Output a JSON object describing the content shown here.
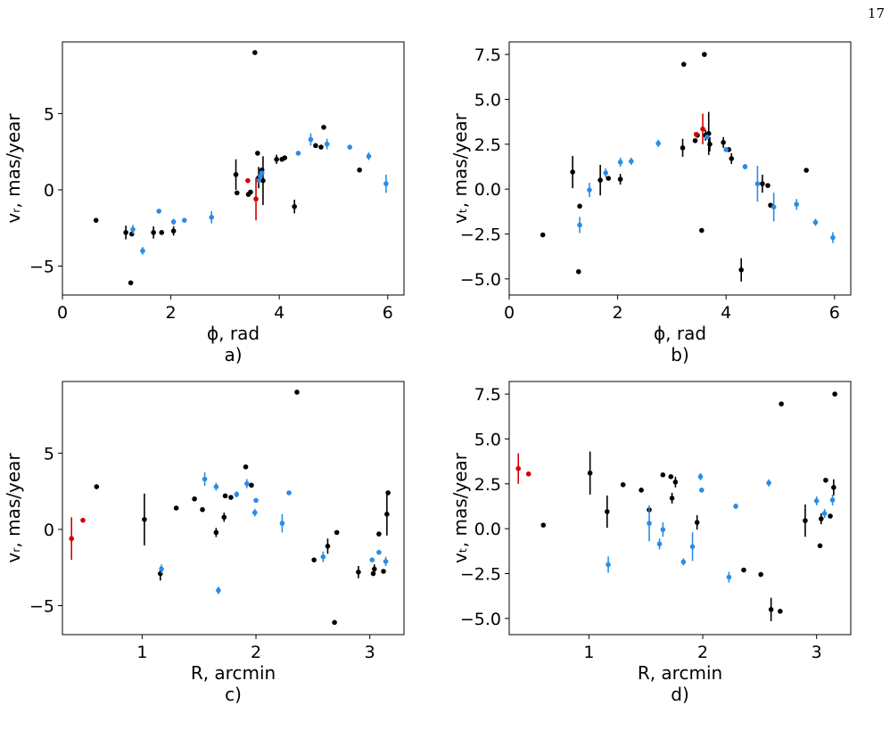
{
  "page_number": "17",
  "colors": {
    "black": "#000000",
    "blue": "#2b8ce6",
    "red": "#d40000"
  },
  "chart_data": [
    {
      "type": "scatter",
      "panel": "a",
      "caption": "a)",
      "xlabel": "ϕ, rad",
      "ylabel": "vᵣ, mas/year",
      "xlim": [
        0,
        6.3
      ],
      "ylim": [
        -6.9,
        9.7
      ],
      "xticks": [
        0,
        2,
        4,
        6
      ],
      "yticks": [
        -5,
        0,
        5
      ],
      "ytick_labels": [
        "−5",
        "0",
        "5"
      ],
      "grid": false,
      "series": [
        {
          "color": "black",
          "points": [
            [
              0.62,
              -2.0,
              0
            ],
            [
              1.17,
              -2.8,
              0.45
            ],
            [
              1.28,
              -2.9,
              0
            ],
            [
              1.26,
              -6.1,
              0
            ],
            [
              1.68,
              -2.8,
              0.4
            ],
            [
              1.83,
              -2.8,
              0
            ],
            [
              2.05,
              -2.7,
              0.3
            ],
            [
              3.2,
              1.0,
              1.0
            ],
            [
              3.22,
              -0.2,
              0
            ],
            [
              3.43,
              -0.3,
              0
            ],
            [
              3.47,
              -0.15,
              0
            ],
            [
              3.55,
              9.0,
              0
            ],
            [
              3.6,
              2.4,
              0
            ],
            [
              3.62,
              0.8,
              0.7
            ],
            [
              3.68,
              1.3,
              0
            ],
            [
              3.7,
              0.6,
              1.6
            ],
            [
              3.95,
              2.0,
              0.3
            ],
            [
              4.05,
              2.0,
              0
            ],
            [
              4.1,
              2.1,
              0
            ],
            [
              4.28,
              -1.1,
              0.45
            ],
            [
              4.67,
              2.9,
              0
            ],
            [
              4.77,
              2.8,
              0
            ],
            [
              4.82,
              4.1,
              0
            ],
            [
              5.48,
              1.3,
              0
            ]
          ]
        },
        {
          "color": "blue",
          "points": [
            [
              1.3,
              -2.6,
              0.3
            ],
            [
              1.48,
              -4.0,
              0.25
            ],
            [
              1.78,
              -1.4,
              0
            ],
            [
              2.05,
              -2.1,
              0.2
            ],
            [
              2.25,
              -2.0,
              0
            ],
            [
              2.75,
              -1.8,
              0.4
            ],
            [
              3.62,
              0.6,
              0
            ],
            [
              3.65,
              0.9,
              0
            ],
            [
              3.68,
              1.1,
              0
            ],
            [
              4.35,
              2.4,
              0
            ],
            [
              4.58,
              3.3,
              0.4
            ],
            [
              4.88,
              3.0,
              0.35
            ],
            [
              5.3,
              2.8,
              0
            ],
            [
              5.65,
              2.2,
              0.25
            ],
            [
              5.97,
              0.4,
              0.6
            ]
          ]
        },
        {
          "color": "red",
          "points": [
            [
              3.42,
              0.6,
              0
            ],
            [
              3.57,
              -0.6,
              1.4
            ]
          ]
        }
      ]
    },
    {
      "type": "scatter",
      "panel": "b",
      "caption": "b)",
      "xlabel": "ϕ, rad",
      "ylabel": "vₜ, mas/year",
      "xlim": [
        0,
        6.3
      ],
      "ylim": [
        -5.9,
        8.2
      ],
      "xticks": [
        0,
        2,
        4,
        6
      ],
      "yticks": [
        -5.0,
        -2.5,
        0.0,
        2.5,
        5.0,
        7.5
      ],
      "ytick_labels": [
        "−5.0",
        "−2.5",
        "0.0",
        "2.5",
        "5.0",
        "7.5"
      ],
      "grid": false,
      "series": [
        {
          "color": "black",
          "points": [
            [
              0.62,
              -2.55,
              0
            ],
            [
              1.17,
              0.95,
              0.9
            ],
            [
              1.28,
              -4.6,
              0
            ],
            [
              1.3,
              -0.95,
              0
            ],
            [
              1.68,
              0.5,
              0.85
            ],
            [
              1.83,
              0.6,
              0
            ],
            [
              2.05,
              0.55,
              0.3
            ],
            [
              3.2,
              2.3,
              0.5
            ],
            [
              3.22,
              6.95,
              0
            ],
            [
              3.43,
              2.7,
              0
            ],
            [
              3.47,
              3.0,
              0
            ],
            [
              3.55,
              -2.3,
              0
            ],
            [
              3.6,
              7.5,
              0
            ],
            [
              3.62,
              3.0,
              0.3
            ],
            [
              3.68,
              3.1,
              1.2
            ],
            [
              3.7,
              2.5,
              0.4
            ],
            [
              3.95,
              2.6,
              0.3
            ],
            [
              4.05,
              2.2,
              0
            ],
            [
              4.1,
              1.7,
              0.3
            ],
            [
              4.28,
              -4.5,
              0.65
            ],
            [
              4.67,
              0.3,
              0.5
            ],
            [
              4.77,
              0.2,
              0
            ],
            [
              4.82,
              -0.9,
              0
            ],
            [
              5.48,
              1.05,
              0
            ]
          ]
        },
        {
          "color": "blue",
          "points": [
            [
              1.3,
              -2.0,
              0.45
            ],
            [
              1.48,
              -0.05,
              0.4
            ],
            [
              1.78,
              0.9,
              0.25
            ],
            [
              2.05,
              1.5,
              0.25
            ],
            [
              2.25,
              1.55,
              0.2
            ],
            [
              2.75,
              2.55,
              0.2
            ],
            [
              3.65,
              2.9,
              0
            ],
            [
              4.0,
              2.2,
              0
            ],
            [
              4.35,
              1.25,
              0.15
            ],
            [
              4.58,
              0.3,
              1.0
            ],
            [
              4.88,
              -1.0,
              0.8
            ],
            [
              5.3,
              -0.85,
              0.3
            ],
            [
              5.65,
              -1.85,
              0.2
            ],
            [
              5.97,
              -2.7,
              0.3
            ]
          ]
        },
        {
          "color": "red",
          "points": [
            [
              3.45,
              3.05,
              0
            ],
            [
              3.57,
              3.35,
              0.85
            ]
          ]
        }
      ]
    },
    {
      "type": "scatter",
      "panel": "c",
      "caption": "c)",
      "xlabel": "R, arcmin",
      "ylabel": "vᵣ, mas/year",
      "xlim": [
        0.3,
        3.3
      ],
      "ylim": [
        -6.9,
        9.7
      ],
      "xticks": [
        1,
        2,
        3
      ],
      "yticks": [
        -5,
        0,
        5
      ],
      "ytick_labels": [
        "−5",
        "0",
        "5"
      ],
      "grid": false,
      "series": [
        {
          "color": "black",
          "points": [
            [
              0.6,
              2.8,
              0
            ],
            [
              1.02,
              0.65,
              1.7
            ],
            [
              1.16,
              -2.9,
              0.45
            ],
            [
              1.3,
              1.4,
              0
            ],
            [
              1.46,
              2.0,
              0
            ],
            [
              1.53,
              1.3,
              0
            ],
            [
              1.65,
              -0.2,
              0.3
            ],
            [
              1.72,
              0.8,
              0.3
            ],
            [
              1.73,
              2.2,
              0
            ],
            [
              1.78,
              2.1,
              0
            ],
            [
              1.91,
              4.1,
              0
            ],
            [
              1.96,
              2.9,
              0
            ],
            [
              2.36,
              9.0,
              0
            ],
            [
              2.51,
              -2.0,
              0
            ],
            [
              2.63,
              -1.1,
              0.5
            ],
            [
              2.69,
              -6.1,
              0
            ],
            [
              2.71,
              -0.2,
              0
            ],
            [
              2.9,
              -2.8,
              0.4
            ],
            [
              3.03,
              -2.9,
              0
            ],
            [
              3.04,
              -2.6,
              0.3
            ],
            [
              3.08,
              -0.3,
              0
            ],
            [
              3.12,
              -2.75,
              0
            ],
            [
              3.15,
              1.0,
              1.4
            ],
            [
              3.16,
              2.4,
              0
            ]
          ]
        },
        {
          "color": "blue",
          "points": [
            [
              1.17,
              -2.6,
              0.3
            ],
            [
              1.55,
              3.3,
              0.45
            ],
            [
              1.65,
              2.8,
              0.25
            ],
            [
              1.67,
              -4.0,
              0.25
            ],
            [
              1.83,
              2.3,
              0.2
            ],
            [
              1.92,
              3.0,
              0.3
            ],
            [
              1.99,
              1.1,
              0.25
            ],
            [
              2.0,
              1.9,
              0
            ],
            [
              2.23,
              0.4,
              0.6
            ],
            [
              2.29,
              2.4,
              0
            ],
            [
              2.59,
              -1.8,
              0.35
            ],
            [
              3.02,
              -2.0,
              0
            ],
            [
              3.08,
              -1.5,
              0
            ],
            [
              3.14,
              -2.1,
              0.3
            ]
          ]
        },
        {
          "color": "red",
          "points": [
            [
              0.38,
              -0.6,
              1.4
            ],
            [
              0.48,
              0.6,
              0
            ]
          ]
        }
      ]
    },
    {
      "type": "scatter",
      "panel": "d",
      "caption": "d)",
      "xlabel": "R, arcmin",
      "ylabel": "vₜ, mas/year",
      "xlim": [
        0.3,
        3.3
      ],
      "ylim": [
        -5.9,
        8.2
      ],
      "xticks": [
        1,
        2,
        3
      ],
      "yticks": [
        -5.0,
        -2.5,
        0.0,
        2.5,
        5.0,
        7.5
      ],
      "ytick_labels": [
        "−5.0",
        "−2.5",
        "0.0",
        "2.5",
        "5.0",
        "7.5"
      ],
      "grid": false,
      "series": [
        {
          "color": "black",
          "points": [
            [
              0.6,
              0.2,
              0
            ],
            [
              1.01,
              3.1,
              1.2
            ],
            [
              1.16,
              0.95,
              0.9
            ],
            [
              1.3,
              2.45,
              0
            ],
            [
              1.46,
              2.15,
              0
            ],
            [
              1.53,
              1.05,
              0
            ],
            [
              1.65,
              3.0,
              0
            ],
            [
              1.72,
              2.9,
              0
            ],
            [
              1.73,
              1.7,
              0.3
            ],
            [
              1.76,
              2.6,
              0.3
            ],
            [
              1.95,
              0.35,
              0.4
            ],
            [
              2.36,
              -2.3,
              0
            ],
            [
              2.51,
              -2.55,
              0
            ],
            [
              2.6,
              -4.5,
              0.65
            ],
            [
              2.69,
              6.95,
              0
            ],
            [
              2.68,
              -4.6,
              0
            ],
            [
              2.9,
              0.45,
              0.9
            ],
            [
              3.03,
              -0.95,
              0
            ],
            [
              3.04,
              0.55,
              0.3
            ],
            [
              3.08,
              2.7,
              0
            ],
            [
              3.12,
              0.7,
              0
            ],
            [
              3.15,
              2.3,
              0.45
            ],
            [
              3.16,
              7.5,
              0
            ]
          ]
        },
        {
          "color": "blue",
          "points": [
            [
              1.17,
              -2.0,
              0.45
            ],
            [
              1.53,
              0.3,
              1.0
            ],
            [
              1.62,
              -0.85,
              0.3
            ],
            [
              1.65,
              -0.05,
              0.4
            ],
            [
              1.83,
              -1.85,
              0.2
            ],
            [
              1.91,
              -1.0,
              0.8
            ],
            [
              1.98,
              2.9,
              0.2
            ],
            [
              1.99,
              2.15,
              0
            ],
            [
              2.23,
              -2.7,
              0.3
            ],
            [
              2.29,
              1.25,
              0.15
            ],
            [
              2.58,
              2.55,
              0.2
            ],
            [
              3.0,
              1.55,
              0.25
            ],
            [
              3.07,
              0.85,
              0.25
            ],
            [
              3.14,
              1.6,
              0.3
            ]
          ]
        },
        {
          "color": "red",
          "points": [
            [
              0.38,
              3.35,
              0.85
            ],
            [
              0.47,
              3.05,
              0
            ]
          ]
        }
      ]
    }
  ]
}
